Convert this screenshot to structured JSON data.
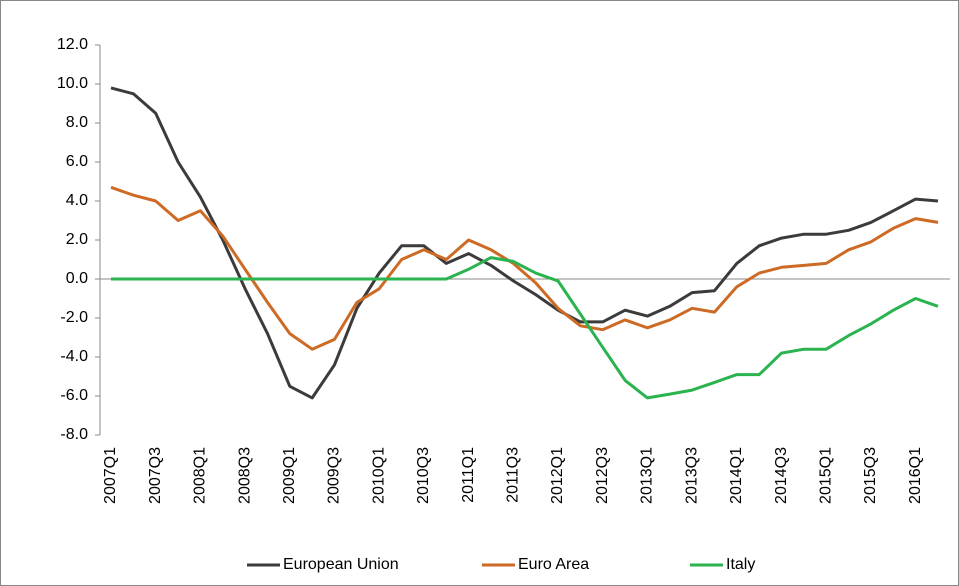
{
  "chart_data": {
    "type": "line",
    "categories": [
      "2007Q1",
      null,
      "2007Q3",
      null,
      "2008Q1",
      null,
      "2008Q3",
      null,
      "2009Q1",
      null,
      "2009Q3",
      null,
      "2010Q1",
      null,
      "2010Q3",
      null,
      "2011Q1",
      null,
      "2011Q3",
      null,
      "2012Q1",
      null,
      "2012Q3",
      null,
      "2013Q1",
      null,
      "2013Q3",
      null,
      "2014Q1",
      null,
      "2014Q3",
      null,
      "2015Q1",
      null,
      "2015Q3",
      null,
      "2016Q1",
      null
    ],
    "series": [
      {
        "name": "European Union",
        "color": "#3b3b3b",
        "values": [
          9.8,
          9.5,
          8.5,
          6.0,
          4.2,
          2.0,
          -0.5,
          -2.8,
          -5.5,
          -6.1,
          -4.4,
          -1.5,
          0.3,
          1.7,
          1.7,
          0.8,
          1.3,
          0.7,
          -0.1,
          -0.8,
          -1.6,
          -2.2,
          -2.2,
          -1.6,
          -1.9,
          -1.4,
          -0.7,
          -0.6,
          0.8,
          1.7,
          2.1,
          2.3,
          2.3,
          2.5,
          2.9,
          3.5,
          4.1,
          4.0
        ]
      },
      {
        "name": "Euro Area",
        "color": "#cd6a25",
        "values": [
          4.7,
          4.3,
          4.0,
          3.0,
          3.5,
          2.2,
          0.5,
          -1.2,
          -2.8,
          -3.6,
          -3.1,
          -1.2,
          -0.5,
          1.0,
          1.5,
          1.0,
          2.0,
          1.5,
          0.8,
          -0.2,
          -1.5,
          -2.4,
          -2.6,
          -2.1,
          -2.5,
          -2.1,
          -1.5,
          -1.7,
          -0.4,
          0.3,
          0.6,
          0.7,
          0.8,
          1.5,
          1.9,
          2.6,
          3.1,
          2.9
        ]
      },
      {
        "name": "Italy",
        "color": "#2bb34f",
        "values": [
          0.0,
          0.0,
          0.0,
          0.0,
          0.0,
          0.0,
          0.0,
          0.0,
          0.0,
          0.0,
          0.0,
          0.0,
          0.0,
          0.0,
          0.0,
          0.0,
          0.5,
          1.1,
          0.9,
          0.3,
          -0.1,
          -1.8,
          -3.5,
          -5.2,
          -6.1,
          -5.9,
          -5.7,
          -5.3,
          -4.9,
          -4.9,
          -3.8,
          -3.6,
          -3.6,
          -2.9,
          -2.3,
          -1.6,
          -1.0,
          -1.4
        ]
      }
    ],
    "ylim": [
      -8,
      12
    ],
    "yticks": [
      {
        "value": -8,
        "label": "-8.0"
      },
      {
        "value": -6,
        "label": "-6.0"
      },
      {
        "value": -4,
        "label": "-4.0"
      },
      {
        "value": -2,
        "label": "-2.0"
      },
      {
        "value": 0,
        "label": "0.0"
      },
      {
        "value": 2,
        "label": "2.0"
      },
      {
        "value": 4,
        "label": "4.0"
      },
      {
        "value": 6,
        "label": "6.0"
      },
      {
        "value": 8,
        "label": "8.0"
      },
      {
        "value": 10,
        "label": "10.0"
      },
      {
        "value": 12,
        "label": "12.0"
      }
    ],
    "grid": false
  }
}
